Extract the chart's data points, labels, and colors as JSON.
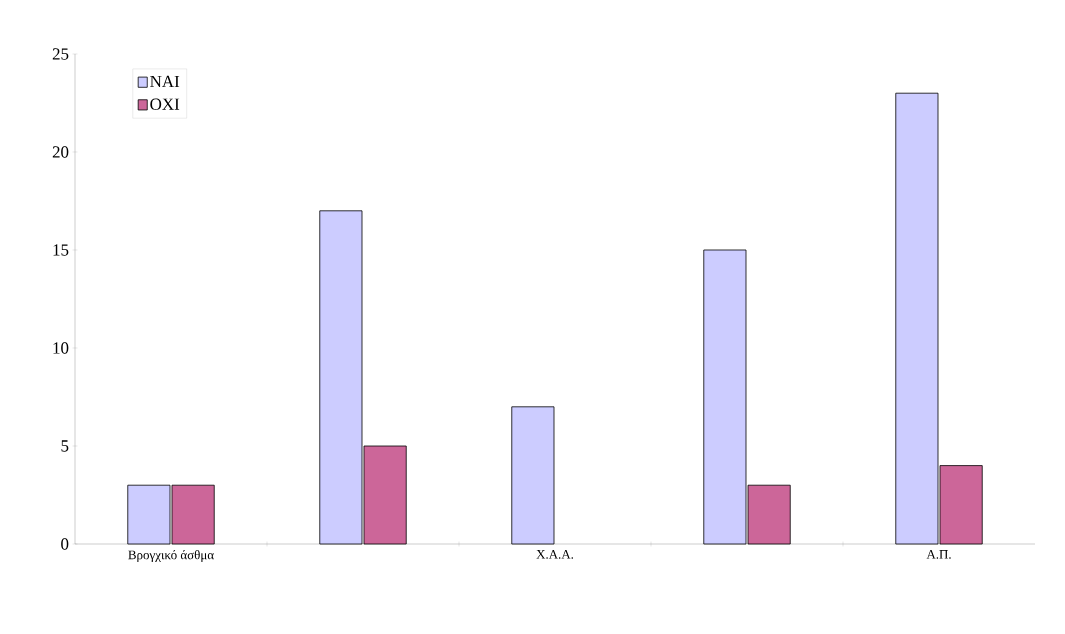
{
  "chart_data": {
    "type": "bar",
    "categories": [
      "Βρογχικό άσθμα",
      null,
      "Χ.Α.Α.",
      null,
      "Α.Π."
    ],
    "series": [
      {
        "name": "ΝΑΙ",
        "color": "#ccccff",
        "values": [
          3,
          17,
          7,
          15,
          23
        ]
      },
      {
        "name": "ΟΧΙ",
        "color": "#cc6699",
        "values": [
          3,
          5,
          null,
          3,
          4
        ]
      }
    ],
    "ylim": [
      0,
      25
    ],
    "yticks": [
      0,
      5,
      10,
      15,
      20,
      25
    ],
    "grid": false,
    "legend": "top left"
  }
}
